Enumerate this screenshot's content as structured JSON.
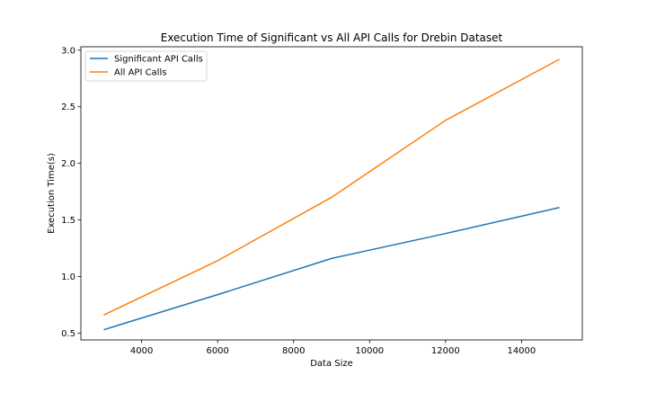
{
  "chart_data": {
    "type": "line",
    "title": "Execution Time of Significant vs All API Calls for Drebin Dataset",
    "xlabel": "Data Size",
    "ylabel": "Execution Time(s)",
    "x": [
      3000,
      6000,
      9000,
      12000,
      15000
    ],
    "series": [
      {
        "name": "Significant API Calls",
        "color": "#1f77b4",
        "values": [
          0.53,
          0.84,
          1.16,
          1.38,
          1.61
        ]
      },
      {
        "name": "All API Calls",
        "color": "#ff7f0e",
        "values": [
          0.66,
          1.14,
          1.7,
          2.38,
          2.92
        ]
      }
    ],
    "xlim": [
      2400,
      15600
    ],
    "ylim": [
      0.44,
      3.03
    ],
    "xticks": [
      4000,
      6000,
      8000,
      10000,
      12000,
      14000
    ],
    "xtick_labels": [
      "4000",
      "6000",
      "8000",
      "10000",
      "12000",
      "14000"
    ],
    "yticks": [
      0.5,
      1.0,
      1.5,
      2.0,
      2.5,
      3.0
    ],
    "ytick_labels": [
      "0.5",
      "1.0",
      "1.5",
      "2.0",
      "2.5",
      "3.0"
    ],
    "grid": false,
    "legend_position": "top-left"
  }
}
